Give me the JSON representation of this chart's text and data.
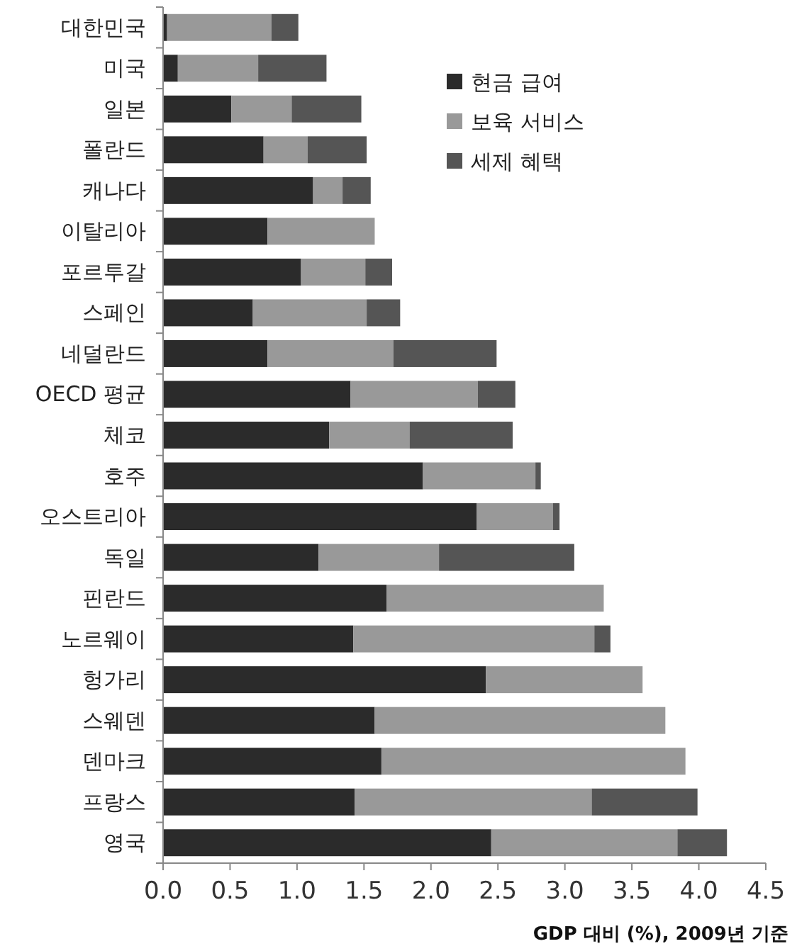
{
  "chart_data": {
    "type": "bar",
    "orientation": "horizontal",
    "stacked": true,
    "xlabel": "GDP 대비 (%), 2009년 기준",
    "categories": [
      "대한민국",
      "미국",
      "일본",
      "폴란드",
      "캐나다",
      "이탈리아",
      "포르투갈",
      "스페인",
      "네덜란드",
      "OECD 평균",
      "체코",
      "호주",
      "오스트리아",
      "독일",
      "핀란드",
      "노르웨이",
      "헝가리",
      "스웨덴",
      "덴마크",
      "프랑스",
      "영국"
    ],
    "series": [
      {
        "name": "현금 급여",
        "color": "#2b2b2b",
        "values": [
          0.03,
          0.11,
          0.51,
          0.75,
          1.12,
          0.78,
          1.03,
          0.67,
          0.78,
          1.4,
          1.24,
          1.94,
          2.34,
          1.16,
          1.67,
          1.42,
          2.41,
          1.58,
          1.63,
          1.43,
          2.45
        ]
      },
      {
        "name": "보육 서비스",
        "color": "#999999",
        "values": [
          0.78,
          0.6,
          0.45,
          0.33,
          0.22,
          0.8,
          0.48,
          0.85,
          0.94,
          0.95,
          0.6,
          0.84,
          0.57,
          0.9,
          1.62,
          1.8,
          1.17,
          2.17,
          2.27,
          1.77,
          1.39
        ]
      },
      {
        "name": "세제 혜택",
        "color": "#555555",
        "values": [
          0.2,
          0.51,
          0.52,
          0.44,
          0.21,
          0,
          0.2,
          0.25,
          0.77,
          0.28,
          0.77,
          0.04,
          0.05,
          1.01,
          0,
          0.12,
          0,
          0,
          0,
          0.79,
          0.37
        ]
      }
    ],
    "xlim": [
      0,
      4.5
    ],
    "xticks": [
      {
        "value": 0,
        "label": "0.0"
      },
      {
        "value": 0.5,
        "label": "0.5"
      },
      {
        "value": 1,
        "label": "1.0"
      },
      {
        "value": 1.5,
        "label": "1.5"
      },
      {
        "value": 2,
        "label": "2.0"
      },
      {
        "value": 2.5,
        "label": "2.5"
      },
      {
        "value": 3,
        "label": "3.0"
      },
      {
        "value": 3.5,
        "label": "3.5"
      },
      {
        "value": 4,
        "label": "4.0"
      },
      {
        "value": 4.5,
        "label": "4.5"
      }
    ],
    "legend": "top right",
    "grid": false
  }
}
